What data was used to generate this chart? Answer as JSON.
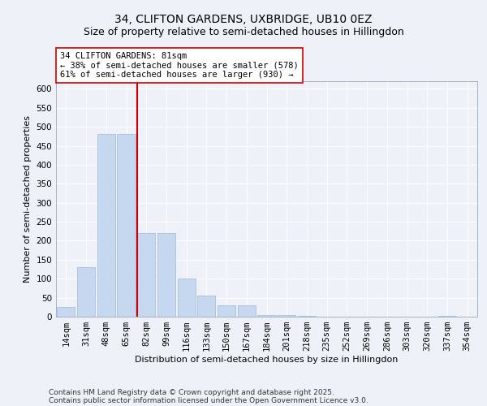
{
  "title1": "34, CLIFTON GARDENS, UXBRIDGE, UB10 0EZ",
  "title2": "Size of property relative to semi-detached houses in Hillingdon",
  "xlabel": "Distribution of semi-detached houses by size in Hillingdon",
  "ylabel": "Number of semi-detached properties",
  "categories": [
    "14sqm",
    "31sqm",
    "48sqm",
    "65sqm",
    "82sqm",
    "99sqm",
    "116sqm",
    "133sqm",
    "150sqm",
    "167sqm",
    "184sqm",
    "201sqm",
    "218sqm",
    "235sqm",
    "252sqm",
    "269sqm",
    "286sqm",
    "303sqm",
    "320sqm",
    "337sqm",
    "354sqm"
  ],
  "values": [
    25,
    130,
    480,
    480,
    220,
    220,
    100,
    55,
    30,
    30,
    5,
    5,
    2,
    1,
    1,
    0,
    0,
    0,
    0,
    2,
    0
  ],
  "bar_color": "#c5d8f0",
  "bar_edge_color": "#a0b8d8",
  "vline_color": "#cc0000",
  "annotation_title": "34 CLIFTON GARDENS: 81sqm",
  "annotation_line1": "← 38% of semi-detached houses are smaller (578)",
  "annotation_line2": "61% of semi-detached houses are larger (930) →",
  "annotation_box_color": "#ffffff",
  "annotation_box_edge": "#cc0000",
  "footer1": "Contains HM Land Registry data © Crown copyright and database right 2025.",
  "footer2": "Contains public sector information licensed under the Open Government Licence v3.0.",
  "ylim": [
    0,
    620
  ],
  "yticks": [
    0,
    50,
    100,
    150,
    200,
    250,
    300,
    350,
    400,
    450,
    500,
    550,
    600
  ],
  "background_color": "#eef2f8",
  "grid_color": "#ffffff",
  "title1_fontsize": 10,
  "title2_fontsize": 9,
  "axis_label_fontsize": 8,
  "tick_fontsize": 7.5,
  "annotation_fontsize": 7.5,
  "footer_fontsize": 6.5
}
